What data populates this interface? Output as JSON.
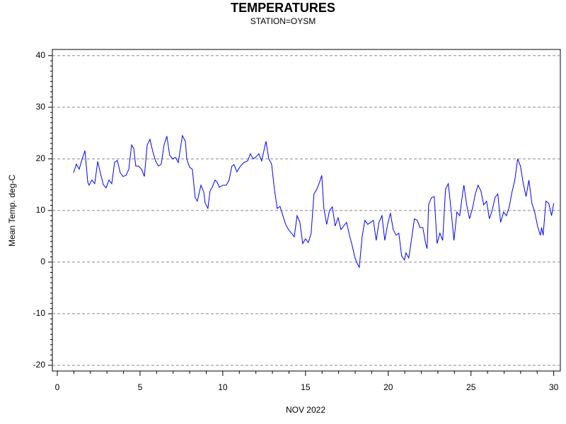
{
  "chart_data": {
    "type": "line",
    "title": "TEMPERATURES",
    "subtitle": "STATION=OYSM",
    "ylabel": "Mean Temp. deg-C",
    "xlabel": "NOV 2022",
    "xlim": [
      -0.3,
      30.4
    ],
    "ylim": [
      -21.1,
      41.2
    ],
    "xticks": [
      0,
      5,
      10,
      15,
      20,
      25,
      30
    ],
    "yticks": [
      -20,
      -10,
      0,
      10,
      20,
      30,
      40
    ],
    "grid": true,
    "x": [
      0.98,
      1.15,
      1.32,
      1.5,
      1.67,
      1.84,
      1.92,
      2.09,
      2.26,
      2.44,
      2.6,
      2.78,
      2.95,
      3.12,
      3.29,
      3.46,
      3.63,
      3.8,
      3.97,
      4.15,
      4.32,
      4.49,
      4.62,
      4.74,
      4.91,
      5.09,
      5.26,
      5.43,
      5.6,
      5.77,
      5.94,
      6.11,
      6.28,
      6.45,
      6.62,
      6.79,
      6.97,
      7.14,
      7.31,
      7.56,
      7.74,
      7.82,
      7.99,
      8.16,
      8.33,
      8.46,
      8.68,
      8.85,
      8.93,
      9.1,
      9.23,
      9.36,
      9.53,
      9.66,
      9.79,
      10.0,
      10.21,
      10.38,
      10.55,
      10.68,
      10.85,
      11.07,
      11.28,
      11.5,
      11.67,
      11.84,
      12.01,
      12.18,
      12.35,
      12.61,
      12.78,
      12.95,
      13.12,
      13.29,
      13.46,
      13.63,
      13.8,
      13.97,
      14.15,
      14.32,
      14.49,
      14.66,
      14.83,
      15.0,
      15.17,
      15.34,
      15.51,
      15.68,
      15.85,
      15.98,
      16.11,
      16.28,
      16.45,
      16.62,
      16.79,
      16.97,
      17.14,
      17.31,
      17.48,
      17.65,
      17.82,
      17.99,
      18.16,
      18.25,
      18.42,
      18.59,
      18.76,
      18.93,
      19.1,
      19.27,
      19.44,
      19.62,
      19.79,
      19.96,
      20.13,
      20.3,
      20.47,
      20.64,
      20.81,
      20.98,
      21.07,
      21.24,
      21.41,
      21.58,
      21.75,
      21.92,
      22.09,
      22.26,
      22.35,
      22.44,
      22.61,
      22.78,
      22.95,
      23.12,
      23.29,
      23.46,
      23.63,
      23.8,
      23.97,
      24.15,
      24.32,
      24.49,
      24.57,
      24.74,
      24.91,
      25.09,
      25.26,
      25.43,
      25.6,
      25.77,
      25.94,
      26.11,
      26.28,
      26.45,
      26.62,
      26.79,
      26.97,
      27.14,
      27.31,
      27.48,
      27.65,
      27.82,
      27.99,
      28.16,
      28.33,
      28.5,
      28.68,
      28.85,
      29.02,
      29.19,
      29.27,
      29.36,
      29.53,
      29.7,
      29.87,
      30.0
    ],
    "series": [
      {
        "name": "Mean Temp. deg-C",
        "color": "#0000ff",
        "values": [
          17.3,
          19,
          18,
          20,
          21.6,
          15.5,
          14.9,
          15.9,
          15.2,
          19.5,
          17.3,
          15,
          14.4,
          15.9,
          15.2,
          19.3,
          19.7,
          17.3,
          16.6,
          16.8,
          18,
          22.7,
          22,
          18.6,
          18.6,
          18,
          16.6,
          22.7,
          23.8,
          21.4,
          19.6,
          18.6,
          19,
          22.7,
          24.4,
          20.7,
          20,
          20.3,
          19.3,
          24.5,
          23.4,
          20,
          18.4,
          18,
          12.5,
          11.8,
          14.9,
          13.6,
          11.5,
          10.4,
          13.8,
          14.5,
          15.9,
          15.5,
          14.5,
          14.9,
          14.9,
          15.9,
          18.6,
          18.9,
          17.5,
          18.6,
          19.3,
          19.6,
          21,
          20,
          20.4,
          21,
          19.6,
          23.4,
          20,
          19,
          14.1,
          10.4,
          10.8,
          9,
          7.3,
          6.3,
          5.6,
          4.9,
          9,
          7.7,
          3.6,
          4.5,
          3.8,
          5.6,
          13.2,
          14.1,
          15.5,
          16.8,
          10.4,
          7.3,
          10,
          10.7,
          7,
          8.6,
          6.3,
          7,
          7.7,
          5.3,
          3.2,
          0.8,
          -0.5,
          -1,
          4.9,
          8.1,
          7.3,
          7.7,
          8.1,
          4.2,
          7.7,
          9,
          4.2,
          7.3,
          9.5,
          6.3,
          5.2,
          5.6,
          1.2,
          0.4,
          1.8,
          0.8,
          4.5,
          8.4,
          8.1,
          6.7,
          6.7,
          3.6,
          2.6,
          11.1,
          12.5,
          12.7,
          3.6,
          5.6,
          4.2,
          14.1,
          15.2,
          10,
          4.2,
          9.7,
          9,
          13.2,
          14.9,
          11.1,
          8.4,
          10.4,
          13.2,
          14.9,
          13.8,
          11.1,
          11.8,
          8.4,
          10,
          12.5,
          13.2,
          7.7,
          9.7,
          9,
          10.7,
          13.6,
          15.9,
          20,
          18.6,
          15.2,
          12.7,
          15.9,
          11.4,
          9.7,
          7,
          5.2,
          6.7,
          5.2,
          11.8,
          11.4,
          9,
          11.4
        ]
      }
    ]
  }
}
